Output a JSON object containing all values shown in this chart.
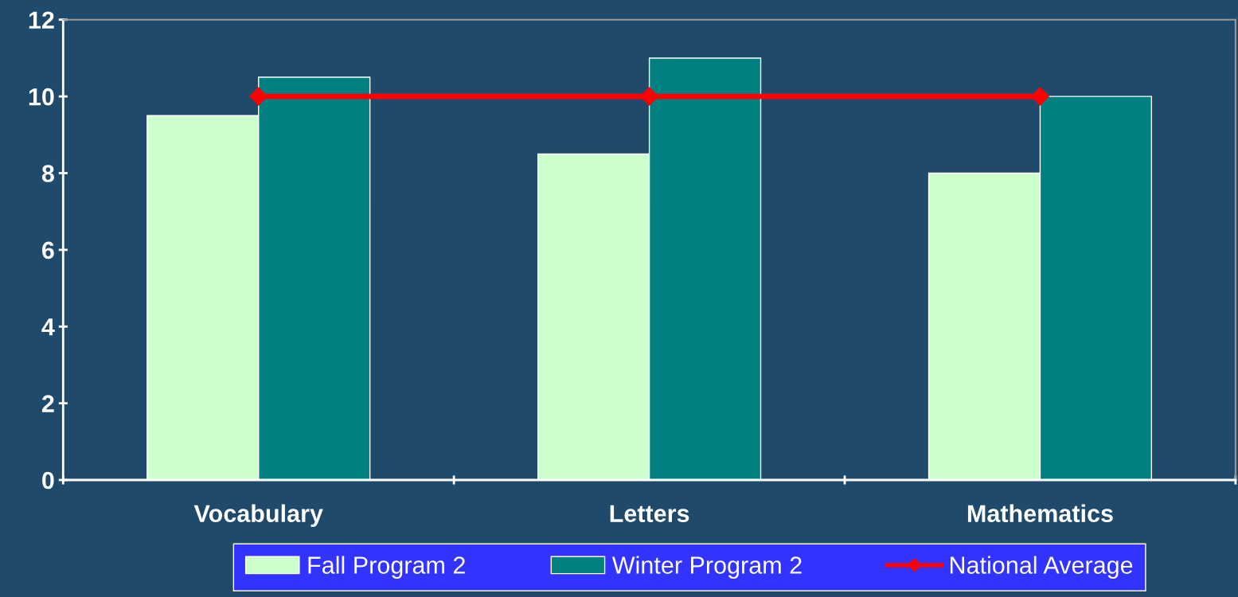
{
  "chart_data": {
    "type": "bar",
    "categories": [
      "Vocabulary",
      "Letters",
      "Mathematics"
    ],
    "series": [
      {
        "name": "Fall Program 2",
        "color": "#ccffcc",
        "values": [
          9.5,
          8.5,
          8
        ]
      },
      {
        "name": "Winter Program 2",
        "color": "#008080",
        "values": [
          10.5,
          11,
          10
        ]
      },
      {
        "name": "National Average",
        "type": "line",
        "color": "#ff0000",
        "values": [
          10,
          10,
          10
        ],
        "marker": "diamond",
        "line_style": "solid"
      }
    ],
    "ylim": [
      0,
      12
    ],
    "yticks": [
      0,
      2,
      4,
      6,
      8,
      10,
      12
    ],
    "grid": false,
    "legend": "bottom"
  }
}
